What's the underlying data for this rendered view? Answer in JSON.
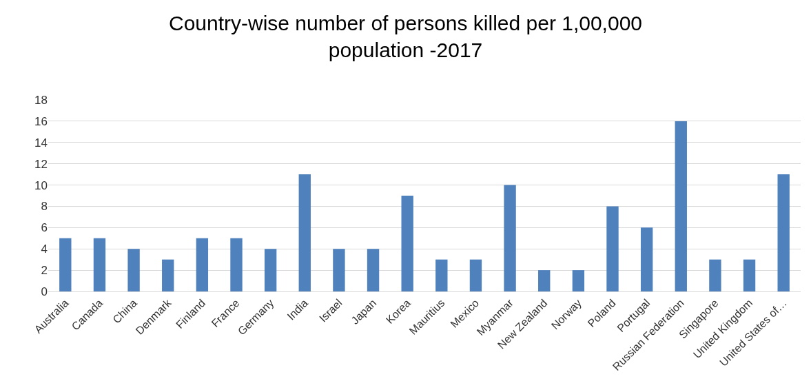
{
  "chart_data": {
    "type": "bar",
    "title": "Country-wise number of persons killed per 1,00,000 population -2017",
    "categories": [
      "Australia",
      "Canada",
      "China",
      "Denmark",
      "Finland",
      "France",
      "Germany",
      "India",
      "Israel",
      "Japan",
      "Korea",
      "Mauritius",
      "Mexico",
      "Myanmar",
      "New Zealand",
      "Norway",
      "Poland",
      "Portugal",
      "Russian Federation",
      "Singapore",
      "United Kingdom",
      "United States of…"
    ],
    "values": [
      5,
      5,
      4,
      3,
      5,
      5,
      4,
      11,
      4,
      4,
      9,
      3,
      3,
      10,
      2,
      2,
      8,
      6,
      16,
      3,
      3,
      11
    ],
    "color": "#4f81bd",
    "ylim": [
      0,
      18
    ],
    "yticks": [
      0,
      2,
      4,
      6,
      8,
      10,
      12,
      14,
      16,
      18
    ],
    "grid": "y"
  }
}
